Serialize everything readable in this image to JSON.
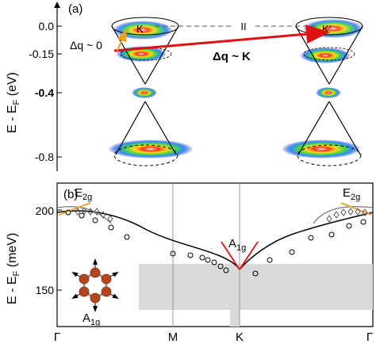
{
  "panel_a": {
    "label": "(a)",
    "ylabel": "E - E",
    "ylabel_sub": "F",
    "ylabel_unit": "(eV)",
    "ticks": [
      "0.0",
      "-0.15",
      "-0.4",
      "-0.8"
    ],
    "valley_left": "K",
    "valley_right": "K’",
    "parallel_mark": "II",
    "arrow_small_label": "Δq ~ 0",
    "arrow_large_label": "Δq ~ K"
  },
  "panel_b": {
    "label": "(b)",
    "ylabel": "E - E",
    "ylabel_sub": "F",
    "ylabel_unit": "(meV)",
    "yticks": [
      "200",
      "150"
    ],
    "xticks": [
      "Γ",
      "M",
      "K",
      "Γ"
    ],
    "mode_e2g_left": "E",
    "mode_e2g_left_sub": "2g",
    "mode_e2g_right": "E",
    "mode_e2g_right_sub": "2g",
    "mode_a1g": "A",
    "mode_a1g_sub": "1g",
    "inset_label": "A",
    "inset_label_sub": "1g"
  },
  "colors": {
    "arrow_red": "#e01010",
    "arrow_yellow": "#f0a020",
    "shade": "#d9d9d9",
    "atom": "#b5451b",
    "kohn_red": "#e51c1c",
    "e2g_orange": "#f0a030"
  }
}
